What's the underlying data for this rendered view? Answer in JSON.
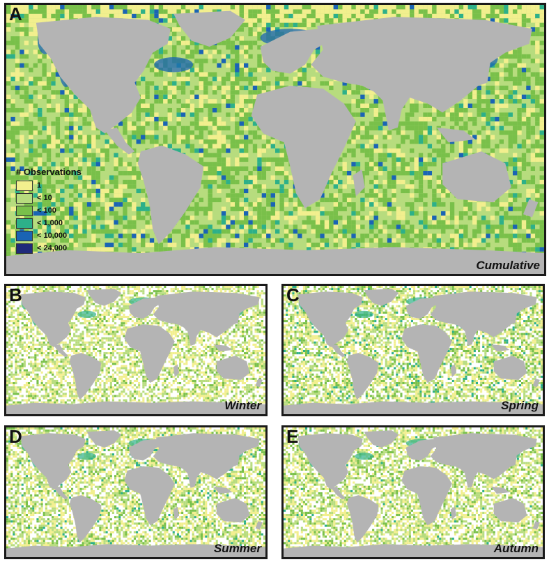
{
  "panels": [
    {
      "letter": "A",
      "label": "Cumulative",
      "intensity": 1.0
    },
    {
      "letter": "B",
      "label": "Winter",
      "intensity": 0.35
    },
    {
      "letter": "C",
      "label": "Spring",
      "intensity": 0.42
    },
    {
      "letter": "D",
      "label": "Summer",
      "intensity": 0.4
    },
    {
      "letter": "E",
      "label": "Autumn",
      "intensity": 0.38
    }
  ],
  "legend": {
    "title": "# Observations",
    "items": [
      {
        "label": "1",
        "color": "#f2ef8e"
      },
      {
        "label": "< 10",
        "color": "#b7dc7e"
      },
      {
        "label": "< 100",
        "color": "#79c04a"
      },
      {
        "label": "< 1,000",
        "color": "#2db089"
      },
      {
        "label": "< 10,000",
        "color": "#1a64b4"
      },
      {
        "label": "< 24,000",
        "color": "#1f2a7a"
      }
    ]
  },
  "colors": {
    "land": "#b4b4b4",
    "ocean_base": "#f7f9ee"
  }
}
